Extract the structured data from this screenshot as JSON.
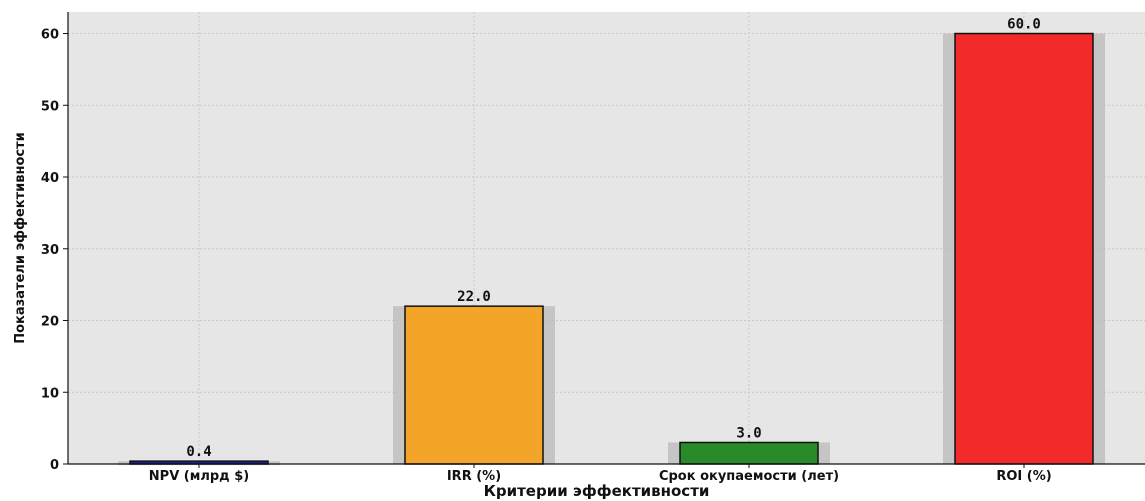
{
  "chart_data": {
    "type": "bar",
    "title": "",
    "xlabel": "Критерии эффективности",
    "ylabel": "Показатели эффективности",
    "categories": [
      "NPV (млрд $)",
      "IRR (%)",
      "Срок окупаемости (лет)",
      "ROI (%)"
    ],
    "values": [
      0.4,
      22.0,
      3.0,
      60.0
    ],
    "value_labels": [
      "0.4",
      "22.0",
      "3.0",
      "60.0"
    ],
    "bar_colors": [
      "#1f1f9a",
      "#f2a529",
      "#2a8a2a",
      "#f22a2a"
    ],
    "ylim": [
      0,
      63
    ],
    "yticks": [
      0,
      10,
      20,
      30,
      40,
      50,
      60
    ],
    "ytick_labels": [
      "0",
      "10",
      "20",
      "30",
      "40",
      "50",
      "60"
    ],
    "grid": true,
    "background": "#e6e6e6",
    "bar_shadow": true
  }
}
